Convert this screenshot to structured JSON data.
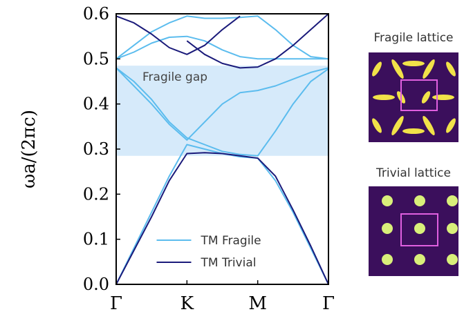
{
  "chart_data": {
    "type": "band",
    "y_label": "ωa/(2πc)",
    "x": [
      0,
      0.25,
      0.5,
      0.75,
      1,
      1.25,
      1.5,
      1.75,
      2,
      2.25,
      2.5,
      2.75,
      3
    ],
    "xlim": [
      0,
      3
    ],
    "xticks": [
      {
        "value": 0,
        "label": "Γ"
      },
      {
        "value": 1,
        "label": "K"
      },
      {
        "value": 2,
        "label": "M"
      },
      {
        "value": 3,
        "label": "Γ"
      }
    ],
    "ylim": [
      0,
      0.6
    ],
    "yticks": [
      {
        "value": 0,
        "label": "0.0"
      },
      0.1,
      0.2,
      0.3,
      0.4,
      0.5,
      0.6
    ],
    "legend": "lower center",
    "series": [
      {
        "name": "TM Fragile",
        "color": "#5bbcee",
        "bands": [
          [
            0,
            0.08,
            0.16,
            0.24,
            0.31,
            0.3,
            0.29,
            0.283,
            0.28,
            0.23,
            0.16,
            0.08,
            0
          ],
          [
            0.48,
            0.45,
            0.41,
            0.36,
            0.325,
            0.31,
            0.295,
            0.288,
            0.285,
            0.34,
            0.4,
            0.45,
            0.478
          ],
          [
            0.48,
            0.44,
            0.4,
            0.355,
            0.32,
            0.36,
            0.4,
            0.425,
            0.43,
            0.44,
            0.455,
            0.47,
            0.48
          ],
          [
            0.5,
            0.515,
            0.535,
            0.548,
            0.55,
            0.54,
            0.52,
            0.505,
            0.5,
            0.5,
            0.5,
            0.5,
            0.5
          ],
          [
            0.5,
            0.53,
            0.56,
            0.58,
            0.595,
            0.59,
            0.59,
            0.592,
            0.595,
            0.565,
            0.53,
            0.505,
            0.5
          ]
        ]
      },
      {
        "name": "TM Trivial",
        "color": "#1a1a7a",
        "bands": [
          [
            0,
            0.075,
            0.15,
            0.23,
            0.29,
            0.292,
            0.29,
            0.285,
            0.28,
            0.24,
            0.165,
            0.085,
            0
          ],
          [
            0.595,
            0.58,
            0.555,
            0.525,
            0.51,
            0.53,
            0.565,
            0.595,
            null,
            null,
            null,
            null,
            null
          ],
          [
            null,
            null,
            null,
            null,
            0.54,
            0.51,
            0.49,
            0.48,
            0.482,
            0.5,
            0.53,
            0.565,
            0.6
          ]
        ]
      }
    ],
    "annotations": [
      {
        "text": "Fragile gap",
        "ymin": 0.285,
        "ymax": 0.485,
        "color": "#d6eafa"
      }
    ]
  },
  "insets": [
    {
      "title": "Fragile lattice"
    },
    {
      "title": "Trivial lattice"
    }
  ]
}
